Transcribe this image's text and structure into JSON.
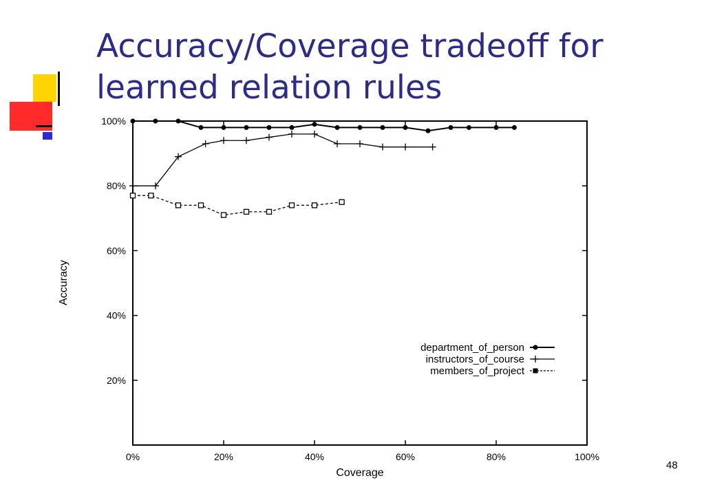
{
  "slide": {
    "title_line1": "Accuracy/Coverage tradeoff for",
    "title_line2": "learned relation rules",
    "page_number": "48",
    "title_color": "#2b2b8f",
    "decor_colors": {
      "yellow": "#ffd400",
      "red": "#ff2a2a",
      "blue": "#2b2bd8"
    }
  },
  "chart_data": {
    "type": "line",
    "xlabel": "Coverage",
    "ylabel": "Accuracy",
    "xlim": [
      0,
      100
    ],
    "ylim": [
      0,
      100
    ],
    "x_ticks": [
      "0%",
      "20%",
      "40%",
      "60%",
      "80%",
      "100%"
    ],
    "y_ticks": [
      "20%",
      "40%",
      "60%",
      "80%",
      "100%"
    ],
    "legend_position": "bottom-right",
    "grid": false,
    "series": [
      {
        "name": "department_of_person",
        "marker": "filled-circle",
        "line": "solid",
        "x": [
          0,
          5,
          10,
          15,
          20,
          25,
          30,
          35,
          40,
          45,
          50,
          55,
          60,
          65,
          70,
          74,
          80,
          84
        ],
        "y": [
          100,
          100,
          100,
          98,
          98,
          98,
          98,
          98,
          99,
          98,
          98,
          98,
          98,
          97,
          98,
          98,
          98,
          98
        ]
      },
      {
        "name": "instructors_of_course",
        "marker": "plus",
        "line": "solid",
        "x": [
          0,
          5,
          10,
          16,
          20,
          25,
          30,
          35,
          40,
          45,
          50,
          55,
          60,
          66
        ],
        "y": [
          80,
          80,
          89,
          93,
          94,
          94,
          95,
          96,
          96,
          93,
          93,
          92,
          92,
          92
        ]
      },
      {
        "name": "members_of_project",
        "marker": "open-square",
        "line": "dashed",
        "x": [
          0,
          4,
          10,
          15,
          20,
          25,
          30,
          35,
          40,
          46
        ],
        "y": [
          77,
          77,
          74,
          74,
          71,
          72,
          72,
          74,
          74,
          75
        ]
      }
    ]
  }
}
